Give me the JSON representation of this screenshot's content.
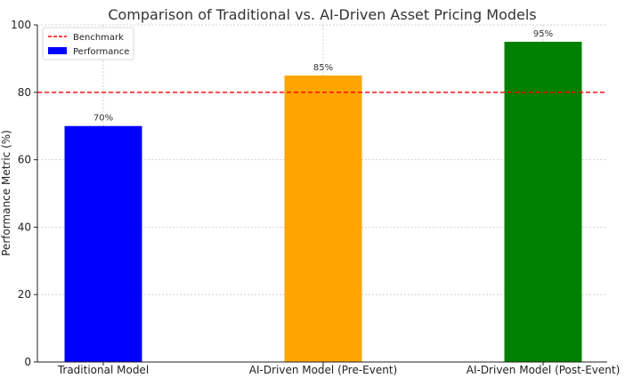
{
  "chart_data": {
    "type": "bar",
    "title": "Comparison of Traditional vs. AI-Driven Asset Pricing Models",
    "xlabel": "",
    "ylabel": "Performance Metric (%)",
    "categories": [
      "Traditional Model",
      "AI-Driven Model (Pre-Event)",
      "AI-Driven Model (Post-Event)"
    ],
    "values": [
      70,
      85,
      95
    ],
    "value_labels": [
      "70%",
      "85%",
      "95%"
    ],
    "bar_colors": [
      "#0000ff",
      "#ffa500",
      "#008000"
    ],
    "ylim": [
      0,
      100
    ],
    "yticks": [
      0,
      20,
      40,
      60,
      80,
      100
    ],
    "grid": true,
    "benchmark": {
      "name": "Benchmark",
      "value": 80,
      "color": "#ff0000",
      "style": "dashed"
    },
    "legend": {
      "placement": "top-left",
      "entries": [
        {
          "label": "Benchmark",
          "kind": "dashed-line",
          "color": "#ff0000"
        },
        {
          "label": "Performance",
          "kind": "patch",
          "color": "#0000ff"
        }
      ]
    }
  }
}
